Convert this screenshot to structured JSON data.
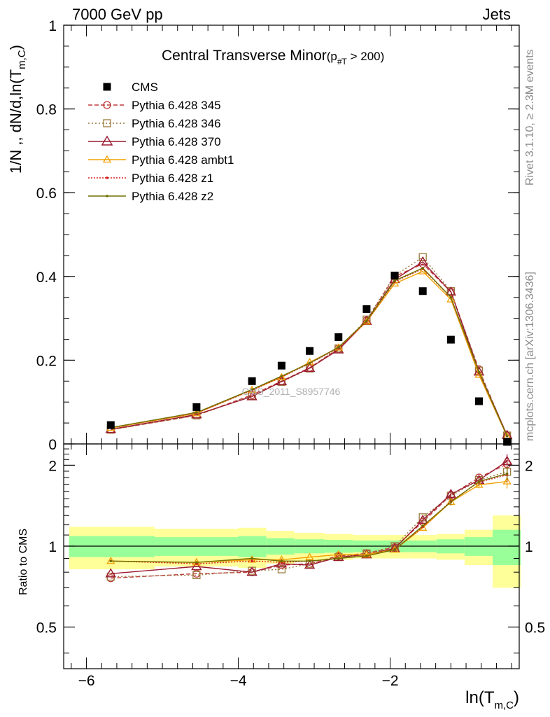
{
  "header": {
    "left": "7000 GeV pp",
    "right": "Jets",
    "title": "Central Transverse Minor",
    "title_cut_main": "(p",
    "title_cut_sub": "#T",
    "title_cut_tail": "  > 200)",
    "rivet_text": "Rivet 3.1.10, ≥ 2.3M events",
    "mcplots_text": "mcplots.cern.ch [arXiv:1306.3436]",
    "watermark": "CMS_2011_S8957746"
  },
  "colors": {
    "cms": "#000000",
    "p345": "#c03a3a",
    "p346": "#9b7a3c",
    "p370": "#9a1a30",
    "ambt1": "#f0a000",
    "z1": "#d42020",
    "z2": "#707000",
    "band_outer": "#ffff99",
    "band_inner": "#99ff99"
  },
  "chart_data": [
    {
      "type": "line",
      "panel": "main",
      "ylabel_main": "1/N ,, dN/d,ln(T",
      "ylabel_sub": "m,C",
      "ylabel_tail": ")",
      "xlim": [
        -6.3,
        -0.3
      ],
      "ylim": [
        0,
        1
      ],
      "y_ticks": [
        0,
        0.2,
        0.4,
        0.6,
        0.8,
        1
      ],
      "y_tick_labels": [
        "0",
        "0.2",
        "0.4",
        "0.6",
        "0.8",
        "1"
      ],
      "x": [
        -5.68,
        -4.55,
        -3.82,
        -3.43,
        -3.06,
        -2.68,
        -2.31,
        -1.94,
        -1.57,
        -1.2,
        -0.83,
        -0.46
      ],
      "series": [
        {
          "name": "CMS",
          "key": "cms",
          "marker": "square",
          "dash": "none",
          "values": [
            0.045,
            0.088,
            0.15,
            0.187,
            0.222,
            0.255,
            0.322,
            0.402,
            0.365,
            0.249,
            0.102,
            0.005
          ]
        },
        {
          "name": "Pythia 6.428 345",
          "key": "p345",
          "marker": "circle",
          "dash": "6,3",
          "values": [
            0.034,
            0.068,
            0.117,
            0.15,
            0.182,
            0.228,
            0.295,
            0.4,
            0.43,
            0.363,
            0.178,
            0.02
          ]
        },
        {
          "name": "Pythia 6.428 346",
          "key": "p346",
          "marker": "square-open",
          "dash": "2,3",
          "values": [
            0.034,
            0.068,
            0.115,
            0.148,
            0.18,
            0.228,
            0.297,
            0.402,
            0.446,
            0.365,
            0.175,
            0.02
          ]
        },
        {
          "name": "Pythia 6.428 370",
          "key": "p370",
          "marker": "triangle",
          "dash": "none",
          "values": [
            0.035,
            0.07,
            0.113,
            0.149,
            0.181,
            0.225,
            0.293,
            0.393,
            0.435,
            0.363,
            0.172,
            0.021
          ]
        },
        {
          "name": "Pythia 6.428 ambt1",
          "key": "ambt1",
          "marker": "triangle-small",
          "dash": "none",
          "values": [
            0.038,
            0.073,
            0.129,
            0.159,
            0.195,
            0.23,
            0.292,
            0.383,
            0.412,
            0.345,
            0.165,
            0.018
          ]
        },
        {
          "name": "Pythia 6.428 z1",
          "key": "z1",
          "marker": "dot",
          "dash": "2,2",
          "values": [
            0.039,
            0.074,
            0.128,
            0.16,
            0.192,
            0.229,
            0.292,
            0.388,
            0.418,
            0.35,
            0.17,
            0.019
          ]
        },
        {
          "name": "Pythia 6.428 z2",
          "key": "z2",
          "marker": "dot",
          "dash": "none",
          "values": [
            0.039,
            0.075,
            0.13,
            0.162,
            0.193,
            0.231,
            0.294,
            0.39,
            0.42,
            0.35,
            0.172,
            0.019
          ]
        }
      ]
    },
    {
      "type": "line",
      "panel": "ratio",
      "ylabel": "Ratio to CMS",
      "xlabel_main": "ln(T",
      "xlabel_sub": "m,C",
      "xlabel_tail": ")",
      "xlim": [
        -6.3,
        -0.3
      ],
      "ylim": [
        0.35,
        2.4
      ],
      "y_ticks": [
        0.5,
        1,
        2
      ],
      "y_tick_labels": [
        "0.5",
        "1",
        "2"
      ],
      "x_ticks": [
        -6,
        -4,
        -2
      ],
      "x_tick_labels": [
        "−6",
        "−4",
        "−2"
      ],
      "x": [
        -5.68,
        -4.55,
        -3.82,
        -3.43,
        -3.06,
        -2.68,
        -2.31,
        -1.94,
        -1.57,
        -1.2,
        -0.83,
        -0.46
      ],
      "bands": {
        "edges": [
          -6.23,
          -5.1,
          -4.0,
          -3.63,
          -3.26,
          -2.86,
          -2.49,
          -2.12,
          -1.76,
          -1.39,
          -1.02,
          -0.65,
          -0.28
        ],
        "outer": [
          0.18,
          0.16,
          0.17,
          0.14,
          0.12,
          0.11,
          0.1,
          0.1,
          0.1,
          0.11,
          0.15,
          0.3
        ],
        "inner": [
          0.09,
          0.08,
          0.09,
          0.07,
          0.06,
          0.055,
          0.05,
          0.05,
          0.05,
          0.06,
          0.08,
          0.15
        ]
      },
      "series": [
        {
          "name": "Pythia 6.428 345",
          "key": "p345",
          "marker": "circle",
          "dash": "6,3",
          "values": [
            0.76,
            0.79,
            0.8,
            0.85,
            0.86,
            0.92,
            0.94,
            0.99,
            1.23,
            1.55,
            1.8,
            2.02
          ]
        },
        {
          "name": "Pythia 6.428 346",
          "key": "p346",
          "marker": "square-open",
          "dash": "2,3",
          "values": [
            0.77,
            0.78,
            0.81,
            0.82,
            0.86,
            0.91,
            0.94,
            1.0,
            1.28,
            1.54,
            1.76,
            1.89
          ]
        },
        {
          "name": "Pythia 6.428 370",
          "key": "p370",
          "marker": "triangle",
          "dash": "none",
          "values": [
            0.79,
            0.84,
            0.8,
            0.86,
            0.85,
            0.91,
            0.93,
            0.98,
            1.25,
            1.56,
            1.76,
            2.07
          ]
        },
        {
          "name": "Pythia 6.428 ambt1",
          "key": "ambt1",
          "marker": "triangle-small",
          "dash": "none",
          "values": [
            0.88,
            0.87,
            0.89,
            0.89,
            0.91,
            0.93,
            0.93,
            0.97,
            1.17,
            1.46,
            1.69,
            1.74
          ]
        },
        {
          "name": "Pythia 6.428 z1",
          "key": "z1",
          "marker": "dot",
          "dash": "2,2",
          "values": [
            0.88,
            0.86,
            0.88,
            0.87,
            0.88,
            0.9,
            0.92,
            0.97,
            1.18,
            1.47,
            1.73,
            1.84
          ]
        },
        {
          "name": "Pythia 6.428 z2",
          "key": "z2",
          "marker": "dot",
          "dash": "none",
          "values": [
            0.88,
            0.87,
            0.9,
            0.88,
            0.88,
            0.9,
            0.92,
            0.97,
            1.19,
            1.46,
            1.74,
            1.86
          ]
        }
      ]
    }
  ]
}
